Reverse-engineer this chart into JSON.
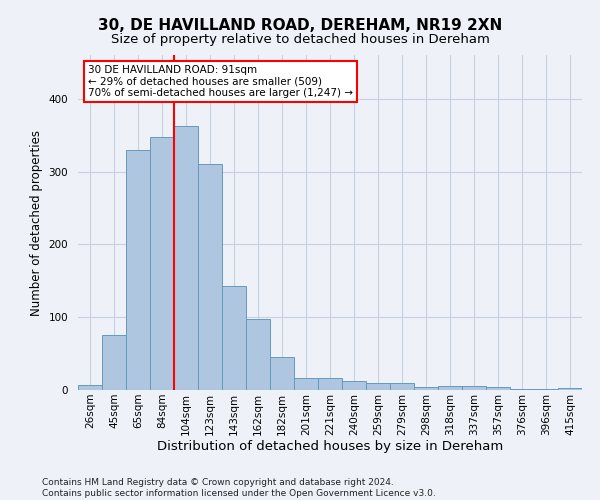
{
  "title": "30, DE HAVILLAND ROAD, DEREHAM, NR19 2XN",
  "subtitle": "Size of property relative to detached houses in Dereham",
  "xlabel": "Distribution of detached houses by size in Dereham",
  "ylabel": "Number of detached properties",
  "categories": [
    "26sqm",
    "45sqm",
    "65sqm",
    "84sqm",
    "104sqm",
    "123sqm",
    "143sqm",
    "162sqm",
    "182sqm",
    "201sqm",
    "221sqm",
    "240sqm",
    "259sqm",
    "279sqm",
    "298sqm",
    "318sqm",
    "337sqm",
    "357sqm",
    "376sqm",
    "396sqm",
    "415sqm"
  ],
  "values": [
    7,
    75,
    330,
    348,
    363,
    310,
    143,
    97,
    46,
    16,
    16,
    13,
    10,
    10,
    4,
    6,
    6,
    4,
    2,
    1,
    3
  ],
  "bar_color": "#aec6df",
  "bar_edge_color": "#6699bb",
  "vline_x_index": 3.5,
  "vline_color": "red",
  "annotation_text": "30 DE HAVILLAND ROAD: 91sqm\n← 29% of detached houses are smaller (509)\n70% of semi-detached houses are larger (1,247) →",
  "annotation_box_color": "white",
  "annotation_box_edge": "red",
  "ylim": [
    0,
    460
  ],
  "background_color": "#eef2f8",
  "grid_color": "#c8cfe0",
  "footer_line1": "Contains HM Land Registry data © Crown copyright and database right 2024.",
  "footer_line2": "Contains public sector information licensed under the Open Government Licence v3.0.",
  "title_fontsize": 11,
  "subtitle_fontsize": 9.5,
  "tick_fontsize": 7.5,
  "ylabel_fontsize": 8.5,
  "xlabel_fontsize": 9.5,
  "footer_fontsize": 6.5
}
